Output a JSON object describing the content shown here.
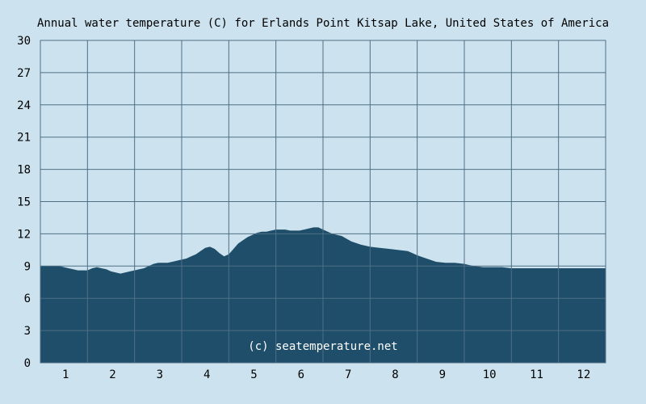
{
  "chart_data": {
    "type": "area",
    "title": "Annual water temperature (C) for Erlands Point Kitsap Lake, United States of America",
    "xlabel": "",
    "ylabel": "",
    "x_ticks": [
      "1",
      "2",
      "3",
      "4",
      "5",
      "6",
      "7",
      "8",
      "9",
      "10",
      "11",
      "12"
    ],
    "y_ticks": [
      "0",
      "3",
      "6",
      "9",
      "12",
      "15",
      "18",
      "21",
      "24",
      "27",
      "30"
    ],
    "xlim": [
      0,
      12
    ],
    "ylim": [
      0,
      30
    ],
    "grid": true,
    "watermark": "(c) seatemperature.net",
    "colors": {
      "background": "#cce3ef",
      "fill": "#1f4e6a",
      "grid": "#4f6f85"
    },
    "series": [
      {
        "x": [
          0.0,
          0.2,
          0.4,
          0.5,
          0.6,
          0.8,
          1.0,
          1.1,
          1.2,
          1.3,
          1.4,
          1.5,
          1.6,
          1.7,
          1.8,
          1.9,
          2.0,
          2.1,
          2.2,
          2.3,
          2.4,
          2.5,
          2.6,
          2.7,
          2.8,
          2.9,
          3.0,
          3.1,
          3.2,
          3.3,
          3.4,
          3.5,
          3.6,
          3.7,
          3.8,
          3.9,
          4.0,
          4.1,
          4.2,
          4.3,
          4.4,
          4.5,
          4.6,
          4.7,
          4.8,
          4.9,
          5.0,
          5.1,
          5.2,
          5.3,
          5.4,
          5.5,
          5.6,
          5.7,
          5.8,
          5.9,
          6.0,
          6.2,
          6.4,
          6.6,
          6.8,
          7.0,
          7.2,
          7.4,
          7.6,
          7.8,
          8.0,
          8.2,
          8.4,
          8.6,
          8.8,
          9.0,
          9.1,
          9.2,
          9.4,
          9.6,
          9.8,
          10.0,
          10.2,
          10.4,
          10.6,
          10.8,
          11.0,
          11.2,
          11.4,
          11.6,
          11.8,
          12.0
        ],
        "y": [
          9.0,
          9.0,
          9.0,
          8.9,
          8.8,
          8.6,
          8.6,
          8.8,
          8.9,
          8.8,
          8.7,
          8.5,
          8.4,
          8.3,
          8.4,
          8.5,
          8.6,
          8.7,
          8.8,
          9.0,
          9.2,
          9.3,
          9.3,
          9.3,
          9.4,
          9.5,
          9.6,
          9.7,
          9.9,
          10.1,
          10.4,
          10.7,
          10.8,
          10.6,
          10.2,
          9.9,
          10.1,
          10.6,
          11.1,
          11.4,
          11.7,
          11.9,
          12.1,
          12.2,
          12.2,
          12.3,
          12.4,
          12.4,
          12.4,
          12.3,
          12.3,
          12.3,
          12.4,
          12.5,
          12.6,
          12.6,
          12.4,
          12.0,
          11.8,
          11.3,
          11.0,
          10.8,
          10.7,
          10.6,
          10.5,
          10.4,
          10.0,
          9.7,
          9.4,
          9.3,
          9.3,
          9.2,
          9.1,
          9.0,
          8.9,
          8.9,
          8.9,
          8.8,
          8.8,
          8.8,
          8.8,
          8.8,
          8.8,
          8.8,
          8.8,
          8.8,
          8.8,
          8.8
        ]
      }
    ]
  }
}
